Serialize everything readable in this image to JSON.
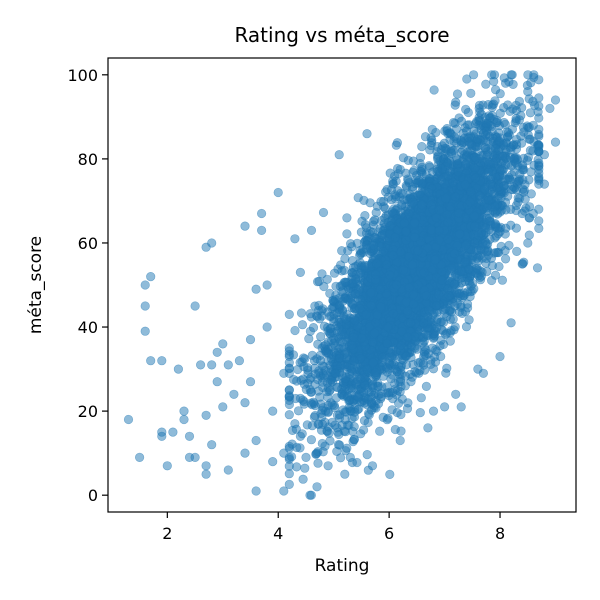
{
  "chart_data": {
    "type": "scatter",
    "title": "Rating vs méta_score",
    "xlabel": "Rating",
    "ylabel": "méta_score",
    "xlim": [
      0.93,
      9.37
    ],
    "ylim": [
      -4,
      104
    ],
    "xticks": [
      2,
      4,
      6,
      8
    ],
    "yticks": [
      0,
      20,
      40,
      60,
      80,
      100
    ],
    "grid": false,
    "point_color": "#1f77b4",
    "point_alpha": 0.5,
    "cluster": {
      "description": "dense elongated cloud of ~7000 points",
      "x_range": [
        4.5,
        8.6
      ],
      "trend": "y increases with x; center line roughly y = 14.5*x - 40"
    },
    "outliers": [
      {
        "x": 1.3,
        "y": 18
      },
      {
        "x": 1.5,
        "y": 9
      },
      {
        "x": 1.6,
        "y": 50
      },
      {
        "x": 1.6,
        "y": 45
      },
      {
        "x": 1.6,
        "y": 39
      },
      {
        "x": 1.7,
        "y": 52
      },
      {
        "x": 1.7,
        "y": 32
      },
      {
        "x": 1.9,
        "y": 32
      },
      {
        "x": 1.9,
        "y": 15
      },
      {
        "x": 1.9,
        "y": 14
      },
      {
        "x": 2.0,
        "y": 7
      },
      {
        "x": 2.1,
        "y": 15
      },
      {
        "x": 2.2,
        "y": 30
      },
      {
        "x": 2.3,
        "y": 20
      },
      {
        "x": 2.3,
        "y": 18
      },
      {
        "x": 2.4,
        "y": 14
      },
      {
        "x": 2.4,
        "y": 9
      },
      {
        "x": 2.5,
        "y": 45
      },
      {
        "x": 2.5,
        "y": 9
      },
      {
        "x": 2.6,
        "y": 31
      },
      {
        "x": 2.7,
        "y": 59
      },
      {
        "x": 2.7,
        "y": 19
      },
      {
        "x": 2.7,
        "y": 7
      },
      {
        "x": 2.7,
        "y": 5
      },
      {
        "x": 2.8,
        "y": 60
      },
      {
        "x": 2.8,
        "y": 31
      },
      {
        "x": 2.8,
        "y": 12
      },
      {
        "x": 2.9,
        "y": 34
      },
      {
        "x": 2.9,
        "y": 27
      },
      {
        "x": 3.0,
        "y": 36
      },
      {
        "x": 3.0,
        "y": 21
      },
      {
        "x": 3.1,
        "y": 6
      },
      {
        "x": 3.1,
        "y": 31
      },
      {
        "x": 3.2,
        "y": 24
      },
      {
        "x": 3.3,
        "y": 32
      },
      {
        "x": 3.4,
        "y": 10
      },
      {
        "x": 3.4,
        "y": 22
      },
      {
        "x": 3.4,
        "y": 64
      },
      {
        "x": 3.5,
        "y": 27
      },
      {
        "x": 3.5,
        "y": 37
      },
      {
        "x": 3.6,
        "y": 49
      },
      {
        "x": 3.6,
        "y": 1
      },
      {
        "x": 3.6,
        "y": 13
      },
      {
        "x": 3.7,
        "y": 67
      },
      {
        "x": 3.7,
        "y": 63
      },
      {
        "x": 3.8,
        "y": 50
      },
      {
        "x": 3.8,
        "y": 40
      },
      {
        "x": 3.9,
        "y": 8
      },
      {
        "x": 3.9,
        "y": 20
      },
      {
        "x": 4.0,
        "y": 72
      },
      {
        "x": 4.1,
        "y": 1
      },
      {
        "x": 4.1,
        "y": 10
      },
      {
        "x": 4.1,
        "y": 29
      },
      {
        "x": 4.2,
        "y": 35
      },
      {
        "x": 4.2,
        "y": 25
      },
      {
        "x": 4.3,
        "y": 61
      },
      {
        "x": 4.3,
        "y": 17
      },
      {
        "x": 4.4,
        "y": 53
      },
      {
        "x": 4.4,
        "y": 14
      },
      {
        "x": 4.5,
        "y": 9
      },
      {
        "x": 4.6,
        "y": 63
      },
      {
        "x": 4.7,
        "y": 2
      },
      {
        "x": 4.7,
        "y": 10
      },
      {
        "x": 4.9,
        "y": 7
      },
      {
        "x": 5.1,
        "y": 81
      },
      {
        "x": 5.2,
        "y": 5
      },
      {
        "x": 5.3,
        "y": 9
      },
      {
        "x": 5.6,
        "y": 86
      },
      {
        "x": 5.7,
        "y": 7
      },
      {
        "x": 6.2,
        "y": 13
      },
      {
        "x": 6.7,
        "y": 16
      },
      {
        "x": 6.8,
        "y": 20
      },
      {
        "x": 7.0,
        "y": 21
      },
      {
        "x": 7.2,
        "y": 24
      },
      {
        "x": 7.3,
        "y": 21
      },
      {
        "x": 7.4,
        "y": 99
      },
      {
        "x": 7.6,
        "y": 30
      },
      {
        "x": 7.7,
        "y": 29
      },
      {
        "x": 7.9,
        "y": 100
      },
      {
        "x": 8.0,
        "y": 33
      },
      {
        "x": 8.1,
        "y": 98
      },
      {
        "x": 8.2,
        "y": 41
      },
      {
        "x": 8.4,
        "y": 55
      },
      {
        "x": 8.5,
        "y": 96
      },
      {
        "x": 8.6,
        "y": 88
      },
      {
        "x": 8.7,
        "y": 74
      },
      {
        "x": 8.8,
        "y": 74
      },
      {
        "x": 8.9,
        "y": 92
      },
      {
        "x": 9.0,
        "y": 94
      },
      {
        "x": 9.0,
        "y": 84
      },
      {
        "x": 8.8,
        "y": 81
      },
      {
        "x": 8.7,
        "y": 79
      },
      {
        "x": 8.6,
        "y": 67
      },
      {
        "x": 8.5,
        "y": 60
      },
      {
        "x": 8.4,
        "y": 67
      },
      {
        "x": 8.3,
        "y": 58
      }
    ]
  }
}
